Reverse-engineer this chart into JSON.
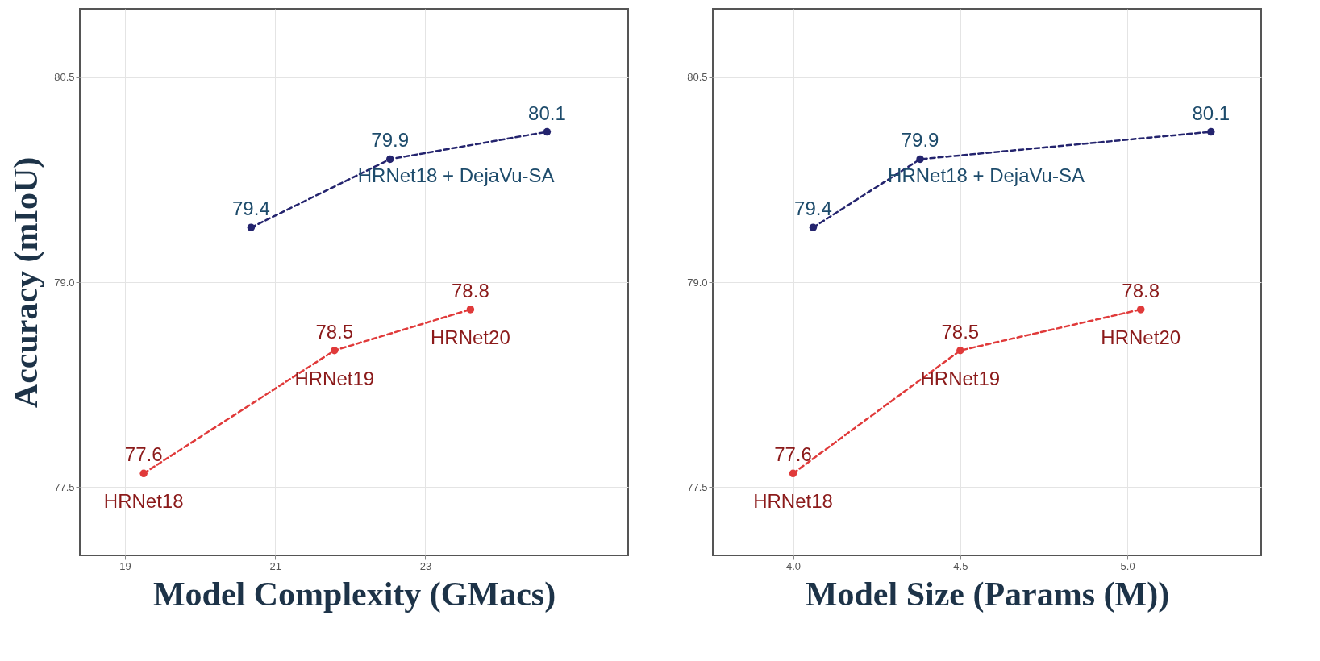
{
  "chart_data": [
    {
      "type": "line",
      "xlabel": "Model Complexity (GMacs)",
      "ylabel": "Accuracy (mIoU)",
      "xlim": [
        18.4,
        25.7
      ],
      "xticks": [
        19,
        21,
        23
      ],
      "ylim": [
        77.0,
        81.0
      ],
      "yticks": [
        {
          "value": 77.5,
          "label": "77.5"
        },
        {
          "value": 79,
          "label": "79.0"
        },
        {
          "value": 80.5,
          "label": "80.5"
        }
      ],
      "grid": true,
      "legend": false,
      "marker": "circle",
      "line_style": "dashed",
      "data_labels": true,
      "series": [
        {
          "name": "HRNet18 + DejaVu-SA",
          "color": "#24246e",
          "x": [
            20.68,
            22.53,
            24.62
          ],
          "values": [
            79.4,
            79.9,
            80.1
          ]
        },
        {
          "color": "#e03a3a",
          "x": [
            19.25,
            21.79,
            23.6
          ],
          "values": [
            77.6,
            78.5,
            78.8
          ]
        }
      ],
      "annotations": [
        {
          "text": "HRNet18",
          "x": 19.25,
          "y": 77.6
        },
        {
          "text": "HRNet19",
          "x": 21.79,
          "y": 78.5
        },
        {
          "text": "HRNet20",
          "x": 23.6,
          "y": 78.8
        }
      ]
    },
    {
      "type": "line",
      "xlabel": "Model Size (Params (M))",
      "xlim": [
        3.76,
        5.4
      ],
      "xticks": [
        {
          "value": 4,
          "label": "4.0"
        },
        4.5,
        {
          "value": 5,
          "label": "5.0"
        }
      ],
      "ylim": [
        77.0,
        81.0
      ],
      "yticks": [
        {
          "value": 77.5,
          "label": "77.5"
        },
        {
          "value": 79,
          "label": "79.0"
        },
        {
          "value": 80.5,
          "label": "80.5"
        }
      ],
      "grid": true,
      "legend": false,
      "marker": "circle",
      "line_style": "dashed",
      "data_labels": true,
      "series": [
        {
          "name": "HRNet18 + DejaVu-SA",
          "color": "#24246e",
          "x": [
            4.06,
            4.38,
            5.25
          ],
          "values": [
            79.4,
            79.9,
            80.1
          ]
        },
        {
          "color": "#e03a3a",
          "x": [
            4.0,
            4.5,
            5.04
          ],
          "values": [
            77.6,
            78.5,
            78.8
          ]
        }
      ],
      "annotations": [
        {
          "text": "HRNet18",
          "x": 4.0,
          "y": 77.6
        },
        {
          "text": "HRNet19",
          "x": 4.5,
          "y": 78.5
        },
        {
          "text": "HRNet20",
          "x": 5.04,
          "y": 78.8
        }
      ]
    }
  ]
}
